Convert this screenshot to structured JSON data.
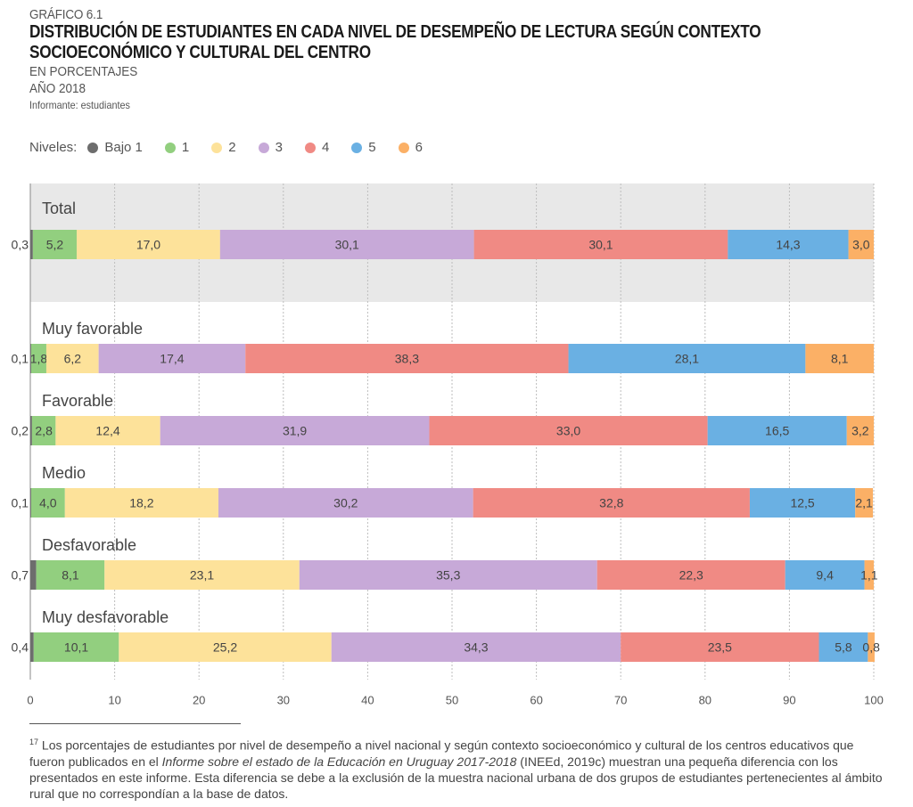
{
  "header": {
    "label": "GRÁFICO 6.1",
    "title_line1": "DISTRIBUCIÓN DE ESTUDIANTES EN CADA NIVEL DE DESEMPEÑO DE LECTURA SEGÚN CONTEXTO",
    "title_line2": "SOCIOECONÓMICO Y CULTURAL DEL CENTRO",
    "subtitle1": "EN PORCENTAJES",
    "subtitle2": "AÑO 2018",
    "informante": "Informante: estudiantes"
  },
  "legend": {
    "title": "Niveles:",
    "items": [
      {
        "label": "Bajo 1",
        "color": "#6d6d6d"
      },
      {
        "label": "1",
        "color": "#92cf7f"
      },
      {
        "label": "2",
        "color": "#fde29a"
      },
      {
        "label": "3",
        "color": "#c7a9d8"
      },
      {
        "label": "4",
        "color": "#f08a84"
      },
      {
        "label": "5",
        "color": "#6ab0e3"
      },
      {
        "label": "6",
        "color": "#fbb066"
      }
    ]
  },
  "chart_data": {
    "type": "bar",
    "orientation": "horizontal",
    "stacked": true,
    "xlim": [
      0,
      100
    ],
    "xticks": [
      "0",
      "10",
      "20",
      "30",
      "40",
      "50",
      "60",
      "70",
      "80",
      "90",
      "100"
    ],
    "series_names": [
      "Bajo 1",
      "1",
      "2",
      "3",
      "4",
      "5",
      "6"
    ],
    "rows": [
      {
        "category": "Total",
        "values": [
          0.3,
          5.2,
          17.0,
          30.1,
          30.1,
          14.3,
          3.0
        ],
        "labels": [
          "0,3",
          "5,2",
          "17,0",
          "30,1",
          "30,1",
          "14,3",
          "3,0"
        ]
      },
      {
        "category": "Muy favorable",
        "values": [
          0.1,
          1.8,
          6.2,
          17.4,
          38.3,
          28.1,
          8.1
        ],
        "labels": [
          "0,1",
          "1,8",
          "6,2",
          "17,4",
          "38,3",
          "28,1",
          "8,1"
        ]
      },
      {
        "category": "Favorable",
        "values": [
          0.2,
          2.8,
          12.4,
          31.9,
          33.0,
          16.5,
          3.2
        ],
        "labels": [
          "0,2",
          "2,8",
          "12,4",
          "31,9",
          "33,0",
          "16,5",
          "3,2"
        ]
      },
      {
        "category": "Medio",
        "values": [
          0.1,
          4.0,
          18.2,
          30.2,
          32.8,
          12.5,
          2.1
        ],
        "labels": [
          "0,1",
          "4,0",
          "18,2",
          "30,2",
          "32,8",
          "12,5",
          "2,1"
        ]
      },
      {
        "category": "Desfavorable",
        "values": [
          0.7,
          8.1,
          23.1,
          35.3,
          22.3,
          9.4,
          1.1
        ],
        "labels": [
          "0,7",
          "8,1",
          "23,1",
          "35,3",
          "22,3",
          "9,4",
          "1,1"
        ]
      },
      {
        "category": "Muy desfavorable",
        "values": [
          0.4,
          10.1,
          25.2,
          34.3,
          23.5,
          5.8,
          0.8
        ],
        "labels": [
          "0,4",
          "10,1",
          "25,2",
          "34,3",
          "23,5",
          "5,8",
          "0,8"
        ]
      }
    ]
  },
  "footnote": {
    "marker": "17",
    "text_before": " Los porcentajes de estudiantes por nivel de desempeño a nivel nacional y según contexto socioeconómico y cultural de los centros educativos que fueron publicados en el ",
    "italic": "Informe sobre el estado de la Educación en Uruguay 2017-2018",
    "text_after": " (INEEd, 2019c) muestran una pequeña diferencia con los presentados en este informe. Esta diferencia se debe a la exclusión de la muestra nacional urbana de dos grupos de estudiantes pertenecientes al ámbito rural que no correspondían a la base de datos."
  }
}
